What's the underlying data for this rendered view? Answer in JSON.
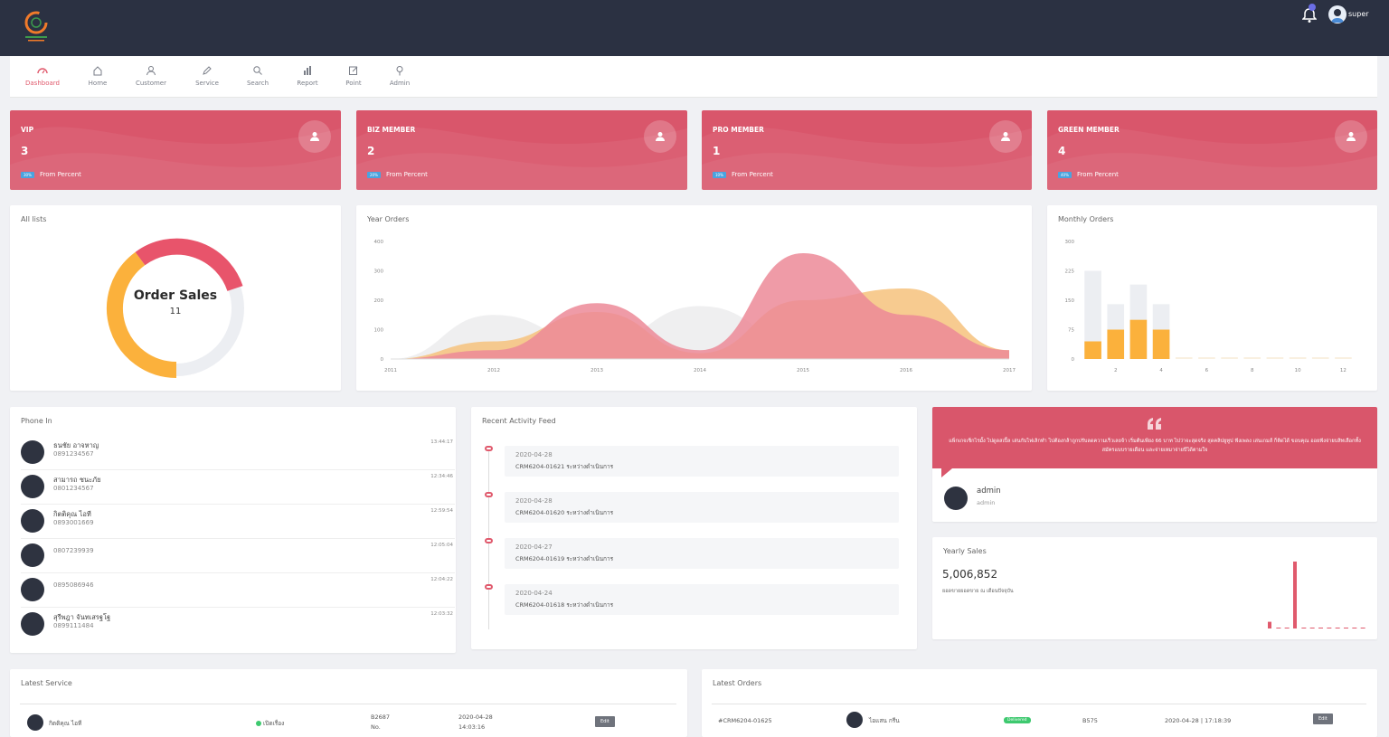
{
  "user": {
    "name": "super",
    "notifications": "0"
  },
  "nav": [
    {
      "label": "Dashboard",
      "icon": "dashboard-icon",
      "active": true
    },
    {
      "label": "Home",
      "icon": "home-icon"
    },
    {
      "label": "Customer",
      "icon": "user-icon"
    },
    {
      "label": "Service",
      "icon": "pencil-icon"
    },
    {
      "label": "Search",
      "icon": "search-icon"
    },
    {
      "label": "Report",
      "icon": "bar-chart-icon"
    },
    {
      "label": "Point",
      "icon": "edit-icon"
    },
    {
      "label": "Admin",
      "icon": "pin-icon"
    }
  ],
  "stats": [
    {
      "label": "VIP",
      "value": "3",
      "badge": "30%",
      "from": "From Percent"
    },
    {
      "label": "BIZ MEMBER",
      "value": "2",
      "badge": "20%",
      "from": "From Percent"
    },
    {
      "label": "PRO MEMBER",
      "value": "1",
      "badge": "10%",
      "from": "From Percent"
    },
    {
      "label": "GREEN MEMBER",
      "value": "4",
      "badge": "40%",
      "from": "From Percent"
    }
  ],
  "all_lists": {
    "title": "All lists",
    "center_label": "Order Sales",
    "center_value": "11"
  },
  "year_orders": {
    "title": "Year Orders"
  },
  "monthly_orders": {
    "title": "Monthly Orders"
  },
  "phone_in": {
    "title": "Phone In",
    "items": [
      {
        "name": "ธนชัย อาจหาญ",
        "phone": "0891234567",
        "time": "13:44:17"
      },
      {
        "name": "สามารถ ชนะภัย",
        "phone": "0801234567",
        "time": "12:34:46"
      },
      {
        "name": "กิตติคุณ ไอที",
        "phone": "0893001669",
        "time": "12:59:54"
      },
      {
        "name": "",
        "phone": "0807239939",
        "time": "12:05:04"
      },
      {
        "name": "",
        "phone": "0895086946",
        "time": "12:04:22"
      },
      {
        "name": "สุรีพฎา จันทเสรฐโฐ",
        "phone": "0899111484",
        "time": "12:03:32"
      }
    ]
  },
  "activity": {
    "title": "Recent Activity Feed",
    "items": [
      {
        "date": "2020-04-28",
        "text": "CRM6204-01621 ระหว่างดำเนินการ"
      },
      {
        "date": "2020-04-28",
        "text": "CRM6204-01620 ระหว่างดำเนินการ"
      },
      {
        "date": "2020-04-27",
        "text": "CRM6204-01619 ระหว่างดำเนินการ"
      },
      {
        "date": "2020-04-24",
        "text": "CRM6204-01618 ระหว่างดำเนินการ"
      }
    ]
  },
  "quote": {
    "text": "แพ็กเกจเช็กไรมั้ง ไปดูดสเปิ้ล เล่นกับไฟเลิกทำ ไปต้องกล้าถูกปรับลดความเร็วเลยจ้า เริ่มต้นเพียง 66 บาท ไปว่าจะสุดจริง สุดคลิปยูทูป ฟังเพลง เล่นเกมส์ ก็ติดได้ ขอบคุณ ออยฟังจ่ายบสิทเลือกทั้งสมัครแบบรายเดือน และจ่ายเหมาจ่ายปีได้ตามใจ",
    "author": "admin",
    "role": "admin"
  },
  "yearly_sales": {
    "title": "Yearly Sales",
    "value": "5,006,852",
    "subtitle": "ยอดขายยอดขาย ณ เดือนปัจจุบัน"
  },
  "latest_service": {
    "title": "Latest Service",
    "row": {
      "name": "กิตติคุณ ไอที",
      "status": "เปิดเรื่อง",
      "code": "B2687",
      "code_sub": "No.",
      "date": "2020-04-28",
      "time": "14:03:16",
      "action": "Edit"
    }
  },
  "latest_orders": {
    "title": "Latest Orders",
    "row": {
      "order": "#CRM6204-01625",
      "customer": "ไอแสน กรีน",
      "status": "Delivered",
      "code": "B575",
      "date": "2020-04-28 | 17:18:39",
      "action": "Edit"
    }
  },
  "colors": {
    "accent": "#d9566b",
    "primary_pink": "#e05a6d",
    "orange": "#fbb13c",
    "topbar": "#2b3142"
  },
  "chart_data": [
    {
      "type": "pie",
      "title": "Order Sales",
      "values": [
        11
      ],
      "categories": [
        "Order Sales"
      ],
      "colors": [
        "#e8546b",
        "#fbb13c",
        "#eceef2"
      ]
    },
    {
      "type": "area",
      "title": "Year Orders",
      "x": [
        "2011",
        "2012",
        "2013",
        "2014",
        "2015",
        "2016",
        "2017"
      ],
      "ylim": [
        0,
        400
      ],
      "yticks": [
        0,
        100,
        200,
        300,
        400
      ],
      "series": [
        {
          "values": [
            0,
            150,
            50,
            180,
            60,
            100,
            30
          ],
          "color": "#e8e8ea"
        },
        {
          "values": [
            0,
            60,
            160,
            20,
            200,
            240,
            30
          ],
          "color": "#f6c27c"
        },
        {
          "values": [
            0,
            30,
            190,
            30,
            360,
            150,
            30
          ],
          "color": "#ec8a98"
        }
      ]
    },
    {
      "type": "bar",
      "title": "Monthly Orders",
      "x": [
        "1",
        "2",
        "3",
        "4",
        "5",
        "6",
        "7",
        "8",
        "9",
        "10",
        "11",
        "12"
      ],
      "xticks": [
        "2",
        "4",
        "6",
        "8",
        "10",
        "12"
      ],
      "ylim": [
        0,
        300
      ],
      "yticks": [
        0,
        75,
        150,
        225,
        300
      ],
      "series": [
        {
          "values": [
            45,
            75,
            100,
            75,
            0,
            0,
            0,
            0,
            0,
            0,
            0,
            0
          ],
          "color": "#fbb13c"
        },
        {
          "values": [
            225,
            140,
            190,
            140,
            0,
            0,
            0,
            0,
            0,
            0,
            0,
            0
          ],
          "color": "#eceef2"
        }
      ]
    },
    {
      "type": "bar",
      "title": "Yearly Sales",
      "values": [
        0.1,
        0,
        0,
        1,
        0,
        0,
        0,
        0,
        0,
        0,
        0,
        0
      ],
      "color": "#e05a6d"
    }
  ]
}
